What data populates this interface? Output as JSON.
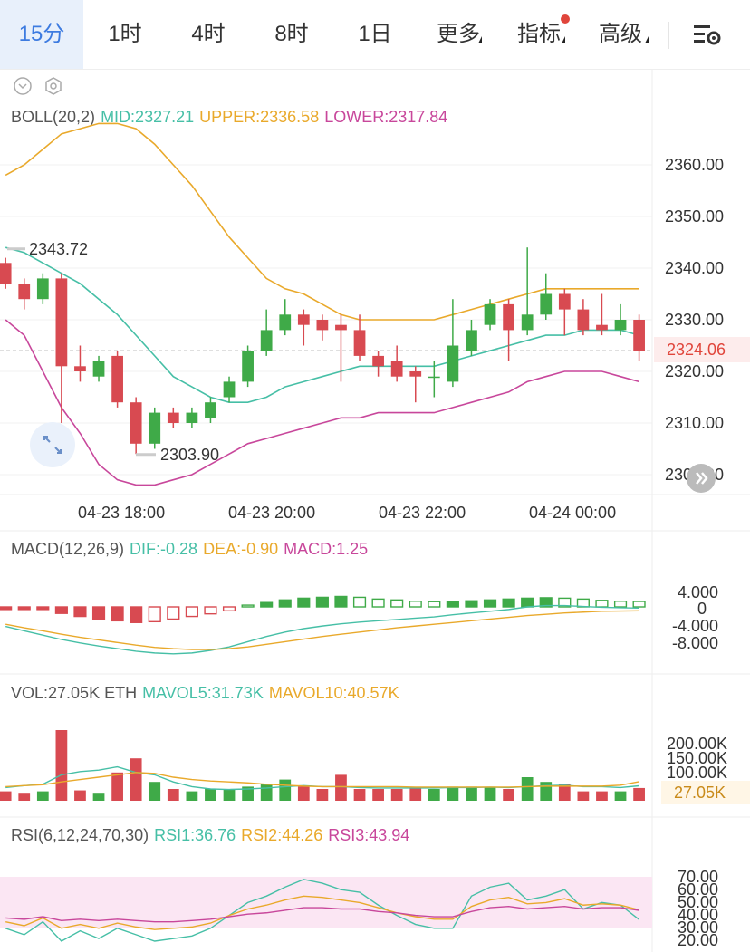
{
  "tabs": [
    {
      "label": "15分",
      "active": true
    },
    {
      "label": "1时"
    },
    {
      "label": "4时"
    },
    {
      "label": "8时"
    },
    {
      "label": "1日"
    },
    {
      "label": "更多",
      "dropdown": true
    },
    {
      "label": "指标",
      "dropdown": true,
      "badge": true
    },
    {
      "label": "高级",
      "dropdown": true
    }
  ],
  "settings_icon": "settings-gear-icon",
  "colors": {
    "up": "#3faa48",
    "down": "#d84a51",
    "mid": "#46bfa6",
    "upper": "#e9a92b",
    "lower": "#c8479b",
    "accent": "#3d7be0",
    "price_tag": "#e0453b"
  },
  "boll": {
    "name": "BOLL(20,2)",
    "mid": "MID:2327.21",
    "upper": "UPPER:2336.58",
    "lower": "LOWER:2317.84"
  },
  "price_axis": [
    "2360.00",
    "2350.00",
    "2340.00",
    "2330.00",
    "2320.00",
    "2310.00",
    "2300.00"
  ],
  "current_price": "2324.06",
  "high_marker": "2343.72",
  "low_marker": "2303.90",
  "time_axis": [
    "04-23 18:00",
    "04-23 20:00",
    "04-23 22:00",
    "04-24 00:00"
  ],
  "macd": {
    "name": "MACD(12,26,9)",
    "dif": "DIF:-0.28",
    "dea": "DEA:-0.90",
    "macd": "MACD:1.25",
    "axis": [
      "4.000",
      "0",
      "-4.000",
      "-8.000"
    ]
  },
  "vol": {
    "name": "VOL:27.05K ETH",
    "mavol5": "MAVOL5:31.73K",
    "mavol10": "MAVOL10:40.57K",
    "axis": [
      "200.00K",
      "150.00K",
      "100.00K"
    ],
    "current": "27.05K"
  },
  "rsi": {
    "name": "RSI(6,12,24,70,30)",
    "rsi1": "RSI1:36.76",
    "rsi2": "RSI2:44.26",
    "rsi3": "RSI3:43.94",
    "axis": [
      "70.00",
      "60.00",
      "50.00",
      "40.00",
      "30.00",
      "20.00"
    ]
  },
  "chart_data": {
    "type": "candlestick",
    "interval": "15分",
    "ylim": [
      2298,
      2370
    ],
    "candles": [
      {
        "o": 2341,
        "c": 2337,
        "h": 2342,
        "l": 2336
      },
      {
        "o": 2337,
        "c": 2334,
        "h": 2338,
        "l": 2332
      },
      {
        "o": 2334,
        "c": 2338,
        "h": 2339,
        "l": 2333
      },
      {
        "o": 2338,
        "c": 2321,
        "h": 2339,
        "l": 2310
      },
      {
        "o": 2321,
        "c": 2320,
        "h": 2325,
        "l": 2318
      },
      {
        "o": 2319,
        "c": 2322,
        "h": 2323,
        "l": 2318
      },
      {
        "o": 2323,
        "c": 2314,
        "h": 2324,
        "l": 2313
      },
      {
        "o": 2314,
        "c": 2306,
        "h": 2315,
        "l": 2304
      },
      {
        "o": 2306,
        "c": 2312,
        "h": 2313,
        "l": 2305
      },
      {
        "o": 2312,
        "c": 2310,
        "h": 2313,
        "l": 2309
      },
      {
        "o": 2310,
        "c": 2312,
        "h": 2313,
        "l": 2309
      },
      {
        "o": 2311,
        "c": 2314,
        "h": 2315,
        "l": 2310
      },
      {
        "o": 2315,
        "c": 2318,
        "h": 2319,
        "l": 2314
      },
      {
        "o": 2318,
        "c": 2324,
        "h": 2325,
        "l": 2317
      },
      {
        "o": 2324,
        "c": 2328,
        "h": 2332,
        "l": 2323
      },
      {
        "o": 2328,
        "c": 2331,
        "h": 2334,
        "l": 2327
      },
      {
        "o": 2331,
        "c": 2329,
        "h": 2332,
        "l": 2325
      },
      {
        "o": 2330,
        "c": 2328,
        "h": 2331,
        "l": 2326
      },
      {
        "o": 2329,
        "c": 2328,
        "h": 2331,
        "l": 2318
      },
      {
        "o": 2328,
        "c": 2323,
        "h": 2331,
        "l": 2322
      },
      {
        "o": 2323,
        "c": 2321,
        "h": 2324,
        "l": 2319
      },
      {
        "o": 2322,
        "c": 2319,
        "h": 2325,
        "l": 2318
      },
      {
        "o": 2320,
        "c": 2319,
        "h": 2321,
        "l": 2314
      },
      {
        "o": 2319,
        "c": 2319,
        "h": 2322,
        "l": 2315
      },
      {
        "o": 2318,
        "c": 2325,
        "h": 2334,
        "l": 2317
      },
      {
        "o": 2324,
        "c": 2328,
        "h": 2330,
        "l": 2323
      },
      {
        "o": 2329,
        "c": 2333,
        "h": 2334,
        "l": 2328
      },
      {
        "o": 2333,
        "c": 2328,
        "h": 2334,
        "l": 2322
      },
      {
        "o": 2328,
        "c": 2331,
        "h": 2344,
        "l": 2327
      },
      {
        "o": 2331,
        "c": 2335,
        "h": 2339,
        "l": 2330
      },
      {
        "o": 2335,
        "c": 2332,
        "h": 2336,
        "l": 2327
      },
      {
        "o": 2332,
        "c": 2328,
        "h": 2334,
        "l": 2327
      },
      {
        "o": 2329,
        "c": 2328,
        "h": 2335,
        "l": 2327
      },
      {
        "o": 2328,
        "c": 2330,
        "h": 2333,
        "l": 2327
      },
      {
        "o": 2330,
        "c": 2324,
        "h": 2331,
        "l": 2322
      }
    ],
    "mid": [
      2344,
      2343,
      2341,
      2339,
      2337,
      2334,
      2331,
      2327,
      2323,
      2319,
      2317,
      2315,
      2314,
      2314,
      2315,
      2317,
      2318,
      2319,
      2320,
      2321,
      2321,
      2321,
      2321,
      2321,
      2322,
      2323,
      2324,
      2325,
      2326,
      2327,
      2327,
      2328,
      2328,
      2328,
      2327
    ],
    "upper": [
      2358,
      2360,
      2363,
      2366,
      2367,
      2368,
      2368,
      2367,
      2364,
      2360,
      2356,
      2351,
      2346,
      2342,
      2338,
      2336,
      2335,
      2333,
      2331,
      2330,
      2330,
      2330,
      2330,
      2330,
      2331,
      2332,
      2333,
      2334,
      2335,
      2336,
      2336,
      2336,
      2336,
      2336,
      2336
    ],
    "lower": [
      2330,
      2327,
      2320,
      2313,
      2308,
      2302,
      2299,
      2298,
      2298,
      2299,
      2300,
      2302,
      2304,
      2306,
      2307,
      2308,
      2309,
      2310,
      2311,
      2311,
      2312,
      2312,
      2312,
      2312,
      2313,
      2314,
      2315,
      2316,
      2318,
      2319,
      2320,
      2320,
      2320,
      2319,
      2318
    ],
    "macd_hist": [
      -0.6,
      -0.6,
      -0.6,
      -1.5,
      -2.2,
      -2.8,
      -3.2,
      -3.6,
      -3.4,
      -2.8,
      -2.2,
      -1.6,
      -0.9,
      0.4,
      1.0,
      1.6,
      2.0,
      2.2,
      2.4,
      2.2,
      1.8,
      1.6,
      1.3,
      1.2,
      1.3,
      1.4,
      1.6,
      1.8,
      2.0,
      2.1,
      2.0,
      1.8,
      1.5,
      1.3,
      1.25
    ],
    "dif": [
      -4.5,
      -5.5,
      -6.5,
      -7.5,
      -8.3,
      -9.0,
      -9.6,
      -10.2,
      -10.6,
      -10.8,
      -10.6,
      -10.0,
      -9.2,
      -8.0,
      -6.8,
      -5.8,
      -5.0,
      -4.4,
      -3.9,
      -3.5,
      -3.2,
      -2.9,
      -2.6,
      -2.3,
      -1.8,
      -1.4,
      -1.0,
      -0.6,
      0.0,
      0.3,
      0.3,
      0.1,
      -0.1,
      -0.2,
      -0.28
    ],
    "dea": [
      -4.0,
      -4.8,
      -5.5,
      -6.3,
      -7.0,
      -7.6,
      -8.2,
      -8.8,
      -9.3,
      -9.6,
      -9.8,
      -9.8,
      -9.6,
      -9.2,
      -8.6,
      -8.0,
      -7.4,
      -6.8,
      -6.3,
      -5.8,
      -5.3,
      -4.8,
      -4.4,
      -4.0,
      -3.6,
      -3.2,
      -2.8,
      -2.4,
      -2.0,
      -1.7,
      -1.4,
      -1.2,
      -1.0,
      -0.95,
      -0.9
    ],
    "volume": [
      20,
      15,
      20,
      150,
      22,
      15,
      60,
      90,
      40,
      25,
      20,
      25,
      25,
      30,
      35,
      45,
      30,
      25,
      55,
      25,
      25,
      25,
      28,
      25,
      30,
      30,
      28,
      25,
      50,
      40,
      35,
      20,
      20,
      20,
      27.05
    ],
    "mavol5": [
      28,
      32,
      35,
      55,
      62,
      65,
      72,
      60,
      55,
      40,
      30,
      25,
      24,
      25,
      27,
      30,
      32,
      30,
      30,
      28,
      27,
      27,
      27,
      27,
      28,
      28,
      29,
      28,
      30,
      32,
      33,
      30,
      30,
      28,
      31.73
    ],
    "mavol10": [
      30,
      32,
      34,
      40,
      45,
      50,
      55,
      60,
      58,
      50,
      45,
      42,
      40,
      38,
      35,
      33,
      31,
      30,
      30,
      30,
      30,
      30,
      29,
      29,
      29,
      29,
      29,
      29,
      30,
      31,
      31,
      31,
      31,
      33,
      40.57
    ],
    "rsi1": [
      30,
      25,
      35,
      20,
      28,
      22,
      30,
      25,
      20,
      22,
      24,
      30,
      40,
      50,
      55,
      62,
      68,
      65,
      60,
      58,
      48,
      40,
      33,
      30,
      30,
      55,
      62,
      65,
      52,
      55,
      60,
      45,
      50,
      48,
      36.76
    ],
    "rsi2": [
      35,
      32,
      38,
      30,
      33,
      30,
      34,
      31,
      29,
      30,
      31,
      34,
      40,
      45,
      48,
      52,
      55,
      54,
      52,
      50,
      46,
      42,
      39,
      37,
      37,
      47,
      52,
      54,
      49,
      50,
      53,
      48,
      49,
      48,
      44.26
    ],
    "rsi3": [
      38,
      37,
      39,
      36,
      37,
      36,
      37,
      36,
      35,
      35,
      36,
      37,
      39,
      41,
      42,
      44,
      46,
      46,
      45,
      45,
      43,
      42,
      40,
      39,
      39,
      43,
      46,
      47,
      45,
      46,
      47,
      45,
      46,
      46,
      43.94
    ]
  }
}
